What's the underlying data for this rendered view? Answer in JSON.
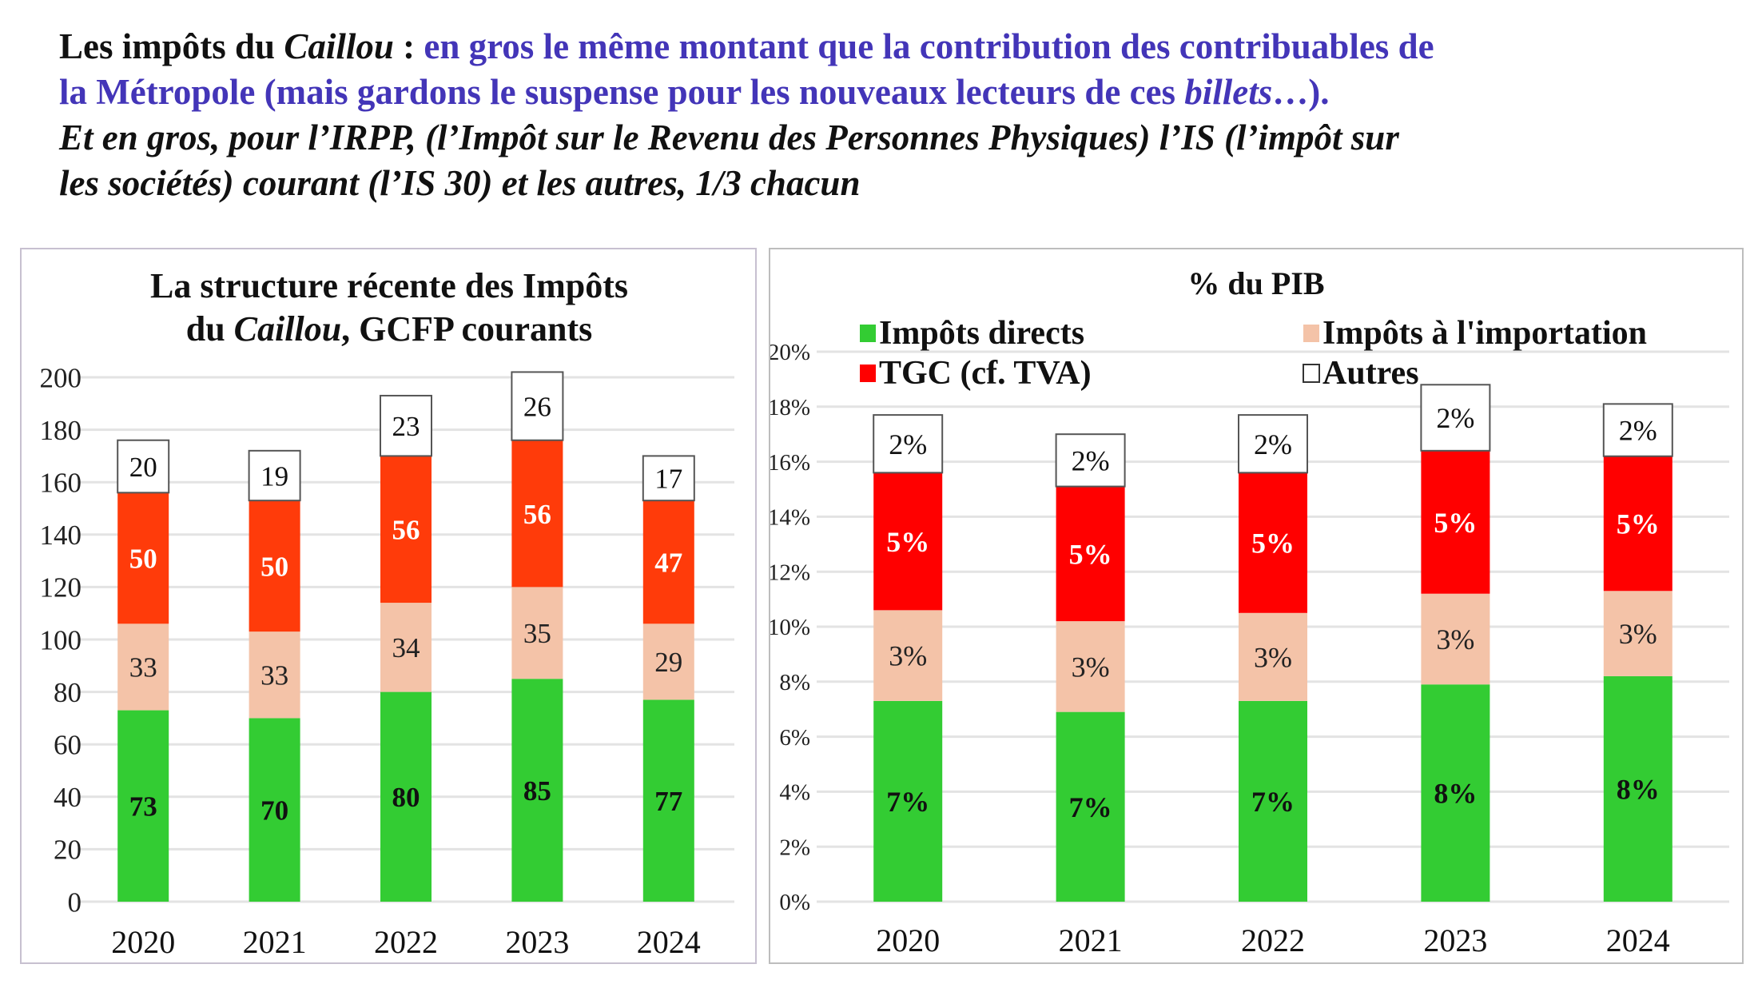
{
  "intro": {
    "line1_black": "Les impôts du ",
    "line1_italic": "Caillou",
    "line1_colon": " : ",
    "line1_blue": "en gros le même montant que la contribution des contribuables de",
    "line2_blue": "la Métropole (mais gardons le suspense pour les nouveaux lecteurs de ces ",
    "line2_italic": "billets",
    "line2_end": "…).",
    "line3": "Et en gros, pour l’IRPP, (l’Impôt sur le Revenu des Personnes Physiques) l’IS (l’impôt sur",
    "line4": "les sociétés) courant (l’IS 30) et les autres, 1/3 chacun"
  },
  "chart_data": [
    {
      "type": "bar",
      "stacked": true,
      "title_line1": "La structure récente des Impôts",
      "title_line2_pre": "du ",
      "title_line2_italic": "Caillou",
      "title_line2_post": ", GCFP courants",
      "categories": [
        "2020",
        "2021",
        "2022",
        "2023",
        "2024"
      ],
      "series": [
        {
          "name": "Impôts directs",
          "color": "#33cc33",
          "label_color": "#111111",
          "values": [
            73,
            70,
            80,
            85,
            77
          ]
        },
        {
          "name": "Impôts à l'importation",
          "color": "#f4c3a8",
          "label_color": "#222222",
          "values": [
            33,
            33,
            34,
            35,
            29
          ]
        },
        {
          "name": "TGC (cf. TVA)",
          "color": "#ff3b0a",
          "label_color": "#ffffff",
          "values": [
            50,
            50,
            56,
            56,
            47
          ]
        },
        {
          "name": "Autres",
          "color": "#ffffff",
          "label_color": "#111111",
          "values": [
            20,
            19,
            23,
            26,
            17
          ]
        }
      ],
      "yticks": [
        "0",
        "20",
        "40",
        "60",
        "80",
        "100",
        "120",
        "140",
        "160",
        "180",
        "200"
      ],
      "ylim": [
        0,
        200
      ],
      "grid": true,
      "legend": "none"
    },
    {
      "type": "bar",
      "stacked": true,
      "title": "% du PIB",
      "categories": [
        "2020",
        "2021",
        "2022",
        "2023",
        "2024"
      ],
      "series": [
        {
          "name": "Impôts directs",
          "color": "#33cc33",
          "label_color": "#111111",
          "values": [
            7.3,
            6.9,
            7.3,
            7.9,
            8.2
          ],
          "labels": [
            "7%",
            "7%",
            "7%",
            "8%",
            "8%"
          ]
        },
        {
          "name": "Impôts à l'importation",
          "color": "#f4c3a8",
          "label_color": "#222222",
          "values": [
            3.3,
            3.3,
            3.2,
            3.3,
            3.1
          ],
          "labels": [
            "3%",
            "3%",
            "3%",
            "3%",
            "3%"
          ]
        },
        {
          "name": "TGC (cf. TVA)",
          "color": "#ff0000",
          "label_color": "#ffffff",
          "values": [
            5.0,
            4.9,
            5.1,
            5.2,
            4.9
          ],
          "labels": [
            "5%",
            "5%",
            "5%",
            "5%",
            "5%"
          ]
        },
        {
          "name": "Autres",
          "color": "#ffffff",
          "label_color": "#111111",
          "values": [
            2.1,
            1.9,
            2.1,
            2.4,
            1.9
          ],
          "labels": [
            "2%",
            "2%",
            "2%",
            "2%",
            "2%"
          ]
        }
      ],
      "yticks": [
        "0%",
        "2%",
        "4%",
        "6%",
        "8%",
        "10%",
        "12%",
        "14%",
        "16%",
        "18%",
        "20%"
      ],
      "ylim": [
        0,
        20
      ],
      "grid": true,
      "legend": "top",
      "legend_items": [
        "Impôts directs",
        "Impôts à l'importation",
        "TGC (cf. TVA)",
        "Autres"
      ]
    }
  ]
}
